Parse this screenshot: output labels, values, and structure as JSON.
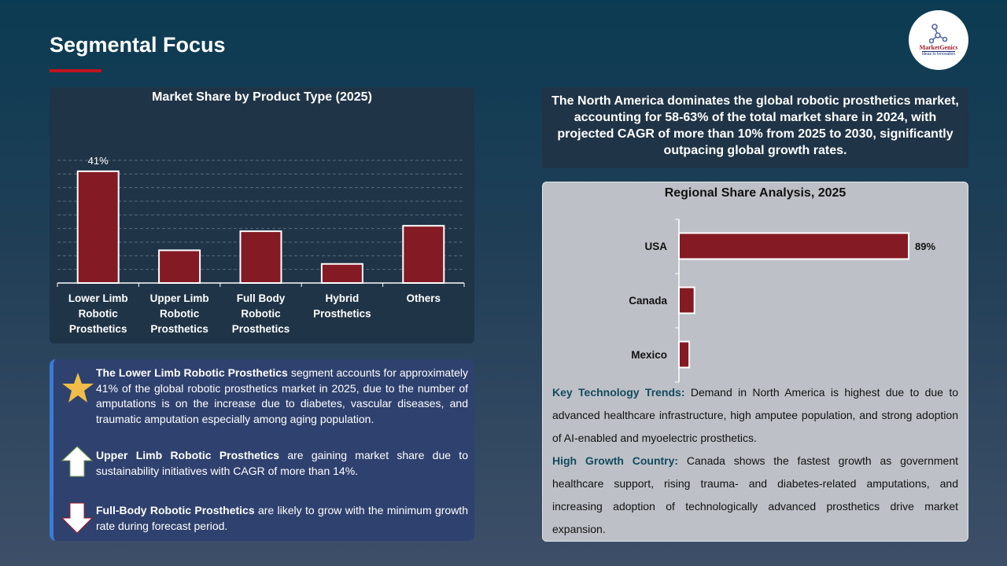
{
  "page": {
    "title": "Segmental Focus"
  },
  "logo": {
    "brand": "MarketGenics",
    "tagline": "Ideas to Innovation"
  },
  "colors": {
    "bar": "#841a24",
    "accent": "#c0141c",
    "key_label": "#134a5e"
  },
  "chart_data": [
    {
      "type": "bar",
      "title": "Market Share by Product Type (2025)",
      "categories": [
        "Lower Limb Robotic Prosthetics",
        "Upper Limb Robotic Prosthetics",
        "Full Body Robotic Prosthetics",
        "Hybrid Prosthetics",
        "Others"
      ],
      "values": [
        41,
        12,
        19,
        7,
        21
      ],
      "data_labels": [
        "41%",
        "",
        "",
        "",
        ""
      ],
      "unit": "%",
      "ylim": [
        0,
        45
      ],
      "grid": true
    },
    {
      "type": "bar",
      "orientation": "horizontal",
      "title": "Regional Share Analysis, 2025",
      "categories": [
        "USA",
        "Canada",
        "Mexico"
      ],
      "values": [
        89,
        6,
        4
      ],
      "data_labels": [
        "89%",
        "",
        ""
      ],
      "unit": "%",
      "xlim": [
        0,
        100
      ],
      "grid": false
    }
  ],
  "highlights": [
    {
      "icon": "star-icon",
      "bold": "The Lower Limb Robotic Prosthetics",
      "text": " segment accounts for approximately 41% of the global robotic prosthetics market in 2025, due to the number of amputations is on the increase due to diabetes, vascular diseases, and traumatic amputation especially among aging population."
    },
    {
      "icon": "arrow-up-icon",
      "bold": "Upper Limb Robotic Prosthetics",
      "text": " are gaining market share due to sustainability initiatives with CAGR of more than 14%."
    },
    {
      "icon": "arrow-down-icon",
      "bold": "Full-Body Robotic Prosthetics",
      "text": " are likely to grow with the minimum growth rate during forecast period."
    }
  ],
  "callout": "The North America dominates the global robotic prosthetics market, accounting for 58-63% of the total market share in 2024, with projected CAGR of more than 10% from 2025 to 2030, significantly outpacing global growth rates.",
  "trends": [
    {
      "label": "Key Technology Trends:",
      "text": " Demand in North America is highest due to due to advanced healthcare infrastructure, high amputee population, and strong adoption of AI-enabled and myoelectric prosthetics."
    },
    {
      "label": "High Growth Country:",
      "text": " Canada shows the fastest growth as government healthcare support, rising trauma- and diabetes-related amputations, and increasing adoption of technologically advanced prosthetics drive market expansion."
    }
  ]
}
